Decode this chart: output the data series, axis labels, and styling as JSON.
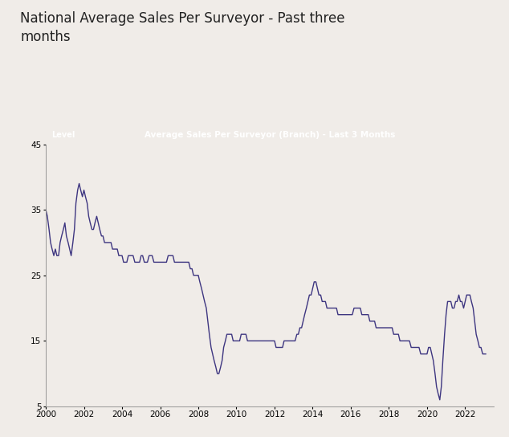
{
  "title": "National Average Sales Per Surveyor - Past three\nmonths",
  "chart_title": "Average Sales Per Surveyor (Branch) - Last 3 Months",
  "ylabel_label": "Level",
  "ylim": [
    5,
    45
  ],
  "yticks": [
    5,
    15,
    25,
    35,
    45
  ],
  "xlim_start": 2000.0,
  "xlim_end": 2023.5,
  "xticks": [
    2000,
    2002,
    2004,
    2006,
    2008,
    2010,
    2012,
    2014,
    2016,
    2018,
    2020,
    2022
  ],
  "line_color": "#3d3580",
  "line_width": 1.0,
  "background_color": "#f0ece8",
  "chart_bg": "#f0ece8",
  "chart_title_bg": "#1a1a1a",
  "chart_title_color": "#ffffff",
  "title_fontsize": 12,
  "axis_fontsize": 7.5,
  "data": {
    "x": [
      2000.0,
      2000.08,
      2000.17,
      2000.25,
      2000.33,
      2000.42,
      2000.5,
      2000.58,
      2000.67,
      2000.75,
      2000.83,
      2000.92,
      2001.0,
      2001.08,
      2001.17,
      2001.25,
      2001.33,
      2001.42,
      2001.5,
      2001.58,
      2001.67,
      2001.75,
      2001.83,
      2001.92,
      2002.0,
      2002.08,
      2002.17,
      2002.25,
      2002.33,
      2002.42,
      2002.5,
      2002.58,
      2002.67,
      2002.75,
      2002.83,
      2002.92,
      2003.0,
      2003.08,
      2003.17,
      2003.25,
      2003.33,
      2003.42,
      2003.5,
      2003.58,
      2003.67,
      2003.75,
      2003.83,
      2003.92,
      2004.0,
      2004.08,
      2004.17,
      2004.25,
      2004.33,
      2004.42,
      2004.5,
      2004.58,
      2004.67,
      2004.75,
      2004.83,
      2004.92,
      2005.0,
      2005.08,
      2005.17,
      2005.25,
      2005.33,
      2005.42,
      2005.5,
      2005.58,
      2005.67,
      2005.75,
      2005.83,
      2005.92,
      2006.0,
      2006.08,
      2006.17,
      2006.25,
      2006.33,
      2006.42,
      2006.5,
      2006.58,
      2006.67,
      2006.75,
      2006.83,
      2006.92,
      2007.0,
      2007.08,
      2007.17,
      2007.25,
      2007.33,
      2007.42,
      2007.5,
      2007.58,
      2007.67,
      2007.75,
      2007.83,
      2007.92,
      2008.0,
      2008.08,
      2008.17,
      2008.25,
      2008.33,
      2008.42,
      2008.5,
      2008.58,
      2008.67,
      2008.75,
      2008.83,
      2008.92,
      2009.0,
      2009.08,
      2009.17,
      2009.25,
      2009.33,
      2009.42,
      2009.5,
      2009.58,
      2009.67,
      2009.75,
      2009.83,
      2009.92,
      2010.0,
      2010.08,
      2010.17,
      2010.25,
      2010.33,
      2010.42,
      2010.5,
      2010.58,
      2010.67,
      2010.75,
      2010.83,
      2010.92,
      2011.0,
      2011.08,
      2011.17,
      2011.25,
      2011.33,
      2011.42,
      2011.5,
      2011.58,
      2011.67,
      2011.75,
      2011.83,
      2011.92,
      2012.0,
      2012.08,
      2012.17,
      2012.25,
      2012.33,
      2012.42,
      2012.5,
      2012.58,
      2012.67,
      2012.75,
      2012.83,
      2012.92,
      2013.0,
      2013.08,
      2013.17,
      2013.25,
      2013.33,
      2013.42,
      2013.5,
      2013.58,
      2013.67,
      2013.75,
      2013.83,
      2013.92,
      2014.0,
      2014.08,
      2014.17,
      2014.25,
      2014.33,
      2014.42,
      2014.5,
      2014.58,
      2014.67,
      2014.75,
      2014.83,
      2014.92,
      2015.0,
      2015.08,
      2015.17,
      2015.25,
      2015.33,
      2015.42,
      2015.5,
      2015.58,
      2015.67,
      2015.75,
      2015.83,
      2015.92,
      2016.0,
      2016.08,
      2016.17,
      2016.25,
      2016.33,
      2016.42,
      2016.5,
      2016.58,
      2016.67,
      2016.75,
      2016.83,
      2016.92,
      2017.0,
      2017.08,
      2017.17,
      2017.25,
      2017.33,
      2017.42,
      2017.5,
      2017.58,
      2017.67,
      2017.75,
      2017.83,
      2017.92,
      2018.0,
      2018.08,
      2018.17,
      2018.25,
      2018.33,
      2018.42,
      2018.5,
      2018.58,
      2018.67,
      2018.75,
      2018.83,
      2018.92,
      2019.0,
      2019.08,
      2019.17,
      2019.25,
      2019.33,
      2019.42,
      2019.5,
      2019.58,
      2019.67,
      2019.75,
      2019.83,
      2019.92,
      2020.0,
      2020.08,
      2020.17,
      2020.25,
      2020.33,
      2020.42,
      2020.5,
      2020.58,
      2020.67,
      2020.75,
      2020.83,
      2020.92,
      2021.0,
      2021.08,
      2021.17,
      2021.25,
      2021.33,
      2021.42,
      2021.5,
      2021.58,
      2021.67,
      2021.75,
      2021.83,
      2021.92,
      2022.0,
      2022.08,
      2022.17,
      2022.25,
      2022.33,
      2022.42,
      2022.5,
      2022.58,
      2022.67,
      2022.75,
      2022.83,
      2022.92,
      2023.0,
      2023.08
    ],
    "y": [
      35,
      34,
      32,
      30,
      29,
      28,
      29,
      28,
      28,
      30,
      31,
      32,
      33,
      31,
      30,
      29,
      28,
      30,
      32,
      36,
      38,
      39,
      38,
      37,
      38,
      37,
      36,
      34,
      33,
      32,
      32,
      33,
      34,
      33,
      32,
      31,
      31,
      30,
      30,
      30,
      30,
      30,
      29,
      29,
      29,
      29,
      28,
      28,
      28,
      27,
      27,
      27,
      28,
      28,
      28,
      28,
      27,
      27,
      27,
      27,
      28,
      28,
      27,
      27,
      27,
      28,
      28,
      28,
      27,
      27,
      27,
      27,
      27,
      27,
      27,
      27,
      27,
      28,
      28,
      28,
      28,
      27,
      27,
      27,
      27,
      27,
      27,
      27,
      27,
      27,
      27,
      26,
      26,
      25,
      25,
      25,
      25,
      24,
      23,
      22,
      21,
      20,
      18,
      16,
      14,
      13,
      12,
      11,
      10,
      10,
      11,
      12,
      14,
      15,
      16,
      16,
      16,
      16,
      15,
      15,
      15,
      15,
      15,
      16,
      16,
      16,
      16,
      15,
      15,
      15,
      15,
      15,
      15,
      15,
      15,
      15,
      15,
      15,
      15,
      15,
      15,
      15,
      15,
      15,
      15,
      14,
      14,
      14,
      14,
      14,
      15,
      15,
      15,
      15,
      15,
      15,
      15,
      15,
      16,
      16,
      17,
      17,
      18,
      19,
      20,
      21,
      22,
      22,
      23,
      24,
      24,
      23,
      22,
      22,
      21,
      21,
      21,
      20,
      20,
      20,
      20,
      20,
      20,
      20,
      19,
      19,
      19,
      19,
      19,
      19,
      19,
      19,
      19,
      19,
      20,
      20,
      20,
      20,
      20,
      19,
      19,
      19,
      19,
      19,
      18,
      18,
      18,
      18,
      17,
      17,
      17,
      17,
      17,
      17,
      17,
      17,
      17,
      17,
      17,
      16,
      16,
      16,
      16,
      15,
      15,
      15,
      15,
      15,
      15,
      15,
      14,
      14,
      14,
      14,
      14,
      14,
      13,
      13,
      13,
      13,
      13,
      14,
      14,
      13,
      12,
      10,
      8,
      7,
      6,
      8,
      12,
      16,
      19,
      21,
      21,
      21,
      20,
      20,
      21,
      21,
      22,
      21,
      21,
      20,
      21,
      22,
      22,
      22,
      21,
      20,
      18,
      16,
      15,
      14,
      14,
      13,
      13,
      13
    ]
  }
}
